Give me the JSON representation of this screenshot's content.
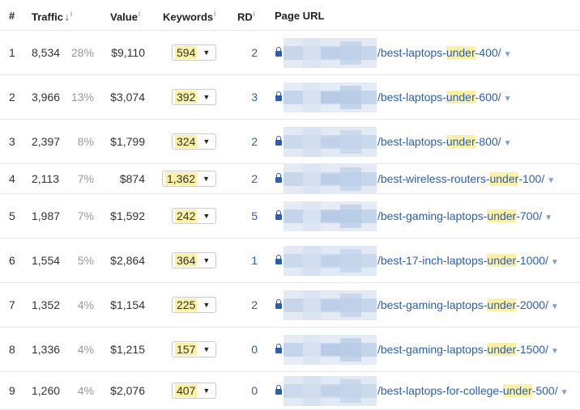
{
  "headers": {
    "num": "#",
    "traffic": "Traffic",
    "value": "Value",
    "keywords": "Keywords",
    "rd": "RD",
    "page_url": "Page URL",
    "info_mark": "i",
    "sort_arrow": "↓"
  },
  "rows": [
    {
      "idx": "1",
      "traffic": "8,534",
      "pct": "28%",
      "value": "$9,110",
      "keywords": "594",
      "rd": "2",
      "url_before": "/best-laptops-",
      "url_hl": "under",
      "url_after": "-400/"
    },
    {
      "idx": "2",
      "traffic": "3,966",
      "pct": "13%",
      "value": "$3,074",
      "keywords": "392",
      "rd": "3",
      "url_before": "/best-laptops-",
      "url_hl": "under",
      "url_after": "-600/"
    },
    {
      "idx": "3",
      "traffic": "2,397",
      "pct": "8%",
      "value": "$1,799",
      "keywords": "324",
      "rd": "2",
      "url_before": "/best-laptops-",
      "url_hl": "under",
      "url_after": "-800/"
    },
    {
      "idx": "4",
      "traffic": "2,113",
      "pct": "7%",
      "value": "$874",
      "keywords": "1,362",
      "rd": "2",
      "url_before": "/best-wireless-routers-",
      "url_hl": "under",
      "url_after": "-100/"
    },
    {
      "idx": "5",
      "traffic": "1,987",
      "pct": "7%",
      "value": "$1,592",
      "keywords": "242",
      "rd": "5",
      "url_before": "/best-gaming-laptops-",
      "url_hl": "under",
      "url_after": "-700/"
    },
    {
      "idx": "6",
      "traffic": "1,554",
      "pct": "5%",
      "value": "$2,864",
      "keywords": "364",
      "rd": "1",
      "url_before": "/best-17-inch-laptops-",
      "url_hl": "under",
      "url_after": "-1000/"
    },
    {
      "idx": "7",
      "traffic": "1,352",
      "pct": "4%",
      "value": "$1,154",
      "keywords": "225",
      "rd": "2",
      "url_before": "/best-gaming-laptops-",
      "url_hl": "under",
      "url_after": "-2000/"
    },
    {
      "idx": "8",
      "traffic": "1,336",
      "pct": "4%",
      "value": "$1,215",
      "keywords": "157",
      "rd": "0",
      "url_before": "/best-gaming-laptops-",
      "url_hl": "under",
      "url_after": "-1500/"
    },
    {
      "idx": "9",
      "traffic": "1,260",
      "pct": "4%",
      "value": "$2,076",
      "keywords": "407",
      "rd": "0",
      "url_before": "/best-laptops-for-college-",
      "url_hl": "under",
      "url_after": "-500/"
    }
  ],
  "icons": {
    "lock": "lock-icon",
    "dropdown": "caret-down-icon"
  },
  "colors": {
    "link": "#2a5fb0",
    "highlight": "#fbf0a8",
    "muted": "#999999"
  }
}
